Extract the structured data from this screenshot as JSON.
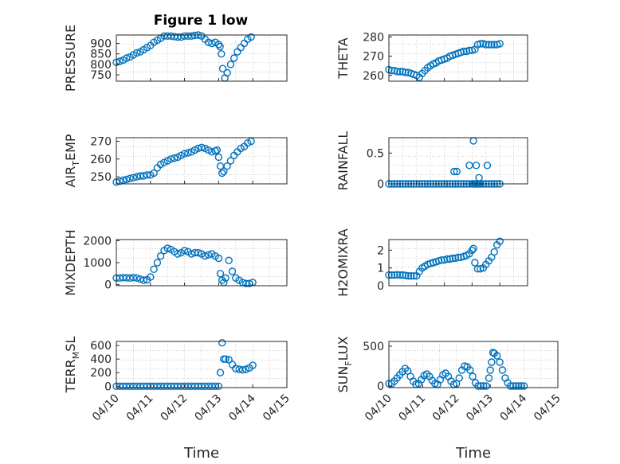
{
  "figure": {
    "title": "Figure 1 low",
    "marker_color": "#0072bd",
    "axis_color": "#262626",
    "grid_color": "#b0b0b0"
  },
  "chart_data": [
    {
      "type": "scatter",
      "position": "row-1-left",
      "title": "Figure 1 low",
      "ylabel_main": "PRESSURE",
      "ylabel_sub": "",
      "ylabel_rest": "",
      "xlabel": "",
      "ylim": [
        720,
        940
      ],
      "yticks": [
        750,
        800,
        850,
        900
      ],
      "xlim": [
        0,
        5
      ],
      "xticks": [],
      "grid": true,
      "x": [
        0.0,
        0.1,
        0.2,
        0.3,
        0.4,
        0.5,
        0.6,
        0.7,
        0.8,
        0.9,
        1.0,
        1.1,
        1.2,
        1.3,
        1.4,
        1.5,
        1.6,
        1.7,
        1.8,
        1.9,
        2.0,
        2.1,
        2.2,
        2.3,
        2.4,
        2.5,
        2.6,
        2.7,
        2.8,
        2.9,
        3.0,
        3.04,
        3.08,
        3.12,
        3.18,
        3.25,
        3.35,
        3.45,
        3.55,
        3.65,
        3.75,
        3.85,
        3.95
      ],
      "y": [
        810,
        815,
        820,
        830,
        835,
        845,
        855,
        860,
        870,
        880,
        890,
        905,
        915,
        925,
        935,
        935,
        935,
        932,
        930,
        930,
        935,
        935,
        935,
        938,
        940,
        935,
        920,
        905,
        900,
        905,
        895,
        885,
        850,
        780,
        735,
        760,
        800,
        830,
        860,
        880,
        900,
        920,
        930
      ]
    },
    {
      "type": "scatter",
      "position": "row-1-right",
      "title": "",
      "ylabel_main": "THETA",
      "ylabel_sub": "",
      "ylabel_rest": "",
      "xlabel": "",
      "ylim": [
        257,
        281
      ],
      "yticks": [
        260,
        270,
        280
      ],
      "xlim": [
        0,
        5
      ],
      "xticks": [],
      "grid": true,
      "x": [
        0.0,
        0.1,
        0.2,
        0.3,
        0.4,
        0.5,
        0.6,
        0.7,
        0.8,
        0.9,
        1.0,
        1.1,
        1.2,
        1.3,
        1.4,
        1.5,
        1.6,
        1.7,
        1.8,
        1.9,
        2.0,
        2.1,
        2.2,
        2.3,
        2.4,
        2.5,
        2.6,
        2.7,
        2.8,
        2.9,
        3.0,
        3.1,
        3.2,
        3.3,
        3.4,
        3.5,
        3.6,
        3.7,
        3.8,
        3.9,
        4.0
      ],
      "y": [
        263,
        262.5,
        262.5,
        262,
        262,
        262,
        261.5,
        261.5,
        261,
        260.5,
        260,
        259,
        261,
        262.5,
        264,
        265,
        266,
        266.5,
        267.5,
        268,
        268.5,
        269,
        270,
        270.5,
        271,
        271.5,
        272,
        272.5,
        272.5,
        273,
        273,
        273.5,
        276,
        276.5,
        276.5,
        276,
        276,
        276,
        276,
        276,
        276.5
      ]
    },
    {
      "type": "scatter",
      "position": "row-2-left",
      "title": "",
      "ylabel_main": "AIR",
      "ylabel_sub": "T",
      "ylabel_rest": "EMP",
      "xlabel": "",
      "ylim": [
        246,
        272
      ],
      "yticks": [
        250,
        260,
        270
      ],
      "xlim": [
        0,
        5
      ],
      "xticks": [],
      "grid": true,
      "x": [
        0.0,
        0.1,
        0.2,
        0.3,
        0.4,
        0.5,
        0.6,
        0.7,
        0.8,
        0.9,
        1.0,
        1.1,
        1.2,
        1.3,
        1.4,
        1.5,
        1.6,
        1.7,
        1.8,
        1.9,
        2.0,
        2.1,
        2.2,
        2.3,
        2.4,
        2.5,
        2.6,
        2.7,
        2.8,
        2.9,
        2.95,
        3.0,
        3.05,
        3.1,
        3.15,
        3.25,
        3.35,
        3.45,
        3.55,
        3.65,
        3.75,
        3.85,
        3.95
      ],
      "y": [
        247,
        247.5,
        248,
        248.5,
        249,
        249.5,
        250,
        250.5,
        250.5,
        251,
        251,
        252,
        255,
        257,
        258,
        259,
        260,
        260.5,
        261,
        262,
        263,
        263.5,
        264,
        265,
        266,
        266.5,
        266,
        265,
        264,
        264.5,
        265,
        261,
        256,
        252,
        253,
        256,
        259,
        262,
        264,
        266,
        267,
        269,
        270
      ]
    },
    {
      "type": "scatter",
      "position": "row-2-right",
      "title": "",
      "ylabel_main": "RAINFALL",
      "ylabel_sub": "",
      "ylabel_rest": "",
      "xlabel": "",
      "ylim": [
        0,
        0.75
      ],
      "yticks": [
        0,
        0.5
      ],
      "xlim": [
        0,
        5
      ],
      "xticks": [],
      "grid": true,
      "x": [
        0.0,
        0.1,
        0.2,
        0.3,
        0.4,
        0.5,
        0.6,
        0.7,
        0.8,
        0.9,
        1.0,
        1.1,
        1.2,
        1.3,
        1.4,
        1.5,
        1.6,
        1.7,
        1.8,
        1.9,
        2.0,
        2.1,
        2.2,
        2.3,
        2.4,
        2.5,
        2.6,
        2.7,
        2.8,
        2.9,
        3.0,
        3.05,
        3.1,
        3.15,
        3.2,
        3.25,
        3.3,
        3.4,
        3.5,
        3.6,
        3.7,
        3.8,
        3.9,
        4.0,
        2.35,
        2.45,
        2.9,
        3.05,
        3.15,
        3.25,
        3.55
      ],
      "y": [
        0,
        0,
        0,
        0,
        0,
        0,
        0,
        0,
        0,
        0,
        0,
        0,
        0,
        0,
        0,
        0,
        0,
        0,
        0,
        0,
        0,
        0,
        0,
        0,
        0,
        0,
        0,
        0,
        0,
        0,
        0,
        0,
        0,
        0,
        0,
        0,
        0,
        0,
        0,
        0,
        0,
        0,
        0,
        0,
        0.2,
        0.2,
        0.3,
        0.7,
        0.3,
        0.1,
        0.3
      ]
    },
    {
      "type": "scatter",
      "position": "row-3-left",
      "title": "",
      "ylabel_main": "MIXDEPTH",
      "ylabel_sub": "",
      "ylabel_rest": "",
      "xlabel": "",
      "ylim": [
        -50,
        2050
      ],
      "yticks": [
        0,
        1000,
        2000
      ],
      "xlim": [
        0,
        5
      ],
      "xticks": [],
      "grid": true,
      "x": [
        0.0,
        0.1,
        0.2,
        0.3,
        0.4,
        0.5,
        0.6,
        0.7,
        0.8,
        0.9,
        1.0,
        1.1,
        1.2,
        1.3,
        1.4,
        1.5,
        1.6,
        1.7,
        1.8,
        1.9,
        2.0,
        2.1,
        2.2,
        2.3,
        2.4,
        2.5,
        2.6,
        2.7,
        2.8,
        2.9,
        3.0,
        3.05,
        3.1,
        3.15,
        3.2,
        3.3,
        3.4,
        3.5,
        3.6,
        3.7,
        3.8,
        3.9,
        4.0
      ],
      "y": [
        300,
        300,
        320,
        310,
        300,
        320,
        300,
        250,
        200,
        220,
        350,
        700,
        1000,
        1300,
        1550,
        1650,
        1600,
        1500,
        1400,
        1450,
        1550,
        1500,
        1400,
        1450,
        1450,
        1400,
        1300,
        1350,
        1400,
        1300,
        1200,
        500,
        200,
        100,
        300,
        1100,
        600,
        300,
        200,
        100,
        50,
        50,
        100
      ]
    },
    {
      "type": "scatter",
      "position": "row-3-right",
      "title": "",
      "ylabel_main": "H2OMIXRA",
      "ylabel_sub": "",
      "ylabel_rest": "",
      "xlabel": "",
      "ylim": [
        0,
        2.6
      ],
      "yticks": [
        0,
        1,
        2
      ],
      "xlim": [
        0,
        5
      ],
      "xticks": [],
      "grid": true,
      "x": [
        0.0,
        0.1,
        0.2,
        0.3,
        0.4,
        0.5,
        0.6,
        0.7,
        0.8,
        0.9,
        1.0,
        1.1,
        1.2,
        1.3,
        1.4,
        1.5,
        1.6,
        1.7,
        1.8,
        1.9,
        2.0,
        2.1,
        2.2,
        2.3,
        2.4,
        2.5,
        2.6,
        2.7,
        2.8,
        2.9,
        3.0,
        3.05,
        3.1,
        3.2,
        3.3,
        3.4,
        3.5,
        3.6,
        3.7,
        3.8,
        3.9,
        4.0
      ],
      "y": [
        0.6,
        0.6,
        0.6,
        0.62,
        0.6,
        0.6,
        0.58,
        0.55,
        0.55,
        0.55,
        0.55,
        0.8,
        1.0,
        1.1,
        1.2,
        1.25,
        1.3,
        1.35,
        1.4,
        1.45,
        1.45,
        1.5,
        1.5,
        1.55,
        1.55,
        1.6,
        1.6,
        1.65,
        1.7,
        1.8,
        2.0,
        2.1,
        1.3,
        0.95,
        0.95,
        1.0,
        1.2,
        1.4,
        1.6,
        1.9,
        2.3,
        2.5
      ]
    },
    {
      "type": "scatter",
      "position": "row-4-left",
      "title": "",
      "ylabel_main": "TERR",
      "ylabel_sub": "M",
      "ylabel_rest": "SL",
      "xlabel": "Time",
      "ylim": [
        -20,
        660
      ],
      "yticks": [
        0,
        200,
        400,
        600
      ],
      "xlim": [
        0,
        5
      ],
      "xticks": [
        "04/10",
        "04/11",
        "04/12",
        "04/13",
        "04/14",
        "04/15"
      ],
      "grid": true,
      "x": [
        0.0,
        0.1,
        0.2,
        0.3,
        0.4,
        0.5,
        0.6,
        0.7,
        0.8,
        0.9,
        1.0,
        1.1,
        1.2,
        1.3,
        1.4,
        1.5,
        1.6,
        1.7,
        1.8,
        1.9,
        2.0,
        2.1,
        2.2,
        2.3,
        2.4,
        2.5,
        2.6,
        2.7,
        2.8,
        2.9,
        3.0,
        3.05,
        3.1,
        3.15,
        3.2,
        3.3,
        3.4,
        3.5,
        3.6,
        3.7,
        3.8,
        3.9,
        4.0
      ],
      "y": [
        0,
        0,
        0,
        0,
        0,
        0,
        0,
        0,
        0,
        0,
        0,
        0,
        0,
        0,
        0,
        0,
        0,
        0,
        0,
        0,
        0,
        0,
        0,
        0,
        0,
        0,
        0,
        0,
        0,
        0,
        0,
        200,
        640,
        400,
        400,
        390,
        320,
        260,
        250,
        240,
        250,
        270,
        310
      ]
    },
    {
      "type": "scatter",
      "position": "row-4-right",
      "title": "",
      "ylabel_main": "SUN",
      "ylabel_sub": "F",
      "ylabel_rest": "LUX",
      "xlabel": "Time",
      "ylim": [
        -20,
        560
      ],
      "yticks": [
        0,
        500
      ],
      "xlim": [
        0,
        5
      ],
      "xticks": [
        "04/10",
        "04/11",
        "04/12",
        "04/13",
        "04/14",
        "04/15"
      ],
      "grid": true,
      "x": [
        0.0,
        0.08,
        0.16,
        0.24,
        0.32,
        0.4,
        0.48,
        0.56,
        0.64,
        0.72,
        0.8,
        0.88,
        0.96,
        1.04,
        1.12,
        1.2,
        1.28,
        1.36,
        1.44,
        1.52,
        1.6,
        1.68,
        1.76,
        1.84,
        1.92,
        2.0,
        2.08,
        2.16,
        2.24,
        2.32,
        2.4,
        2.48,
        2.56,
        2.64,
        2.72,
        2.8,
        2.88,
        2.96,
        3.0,
        3.04,
        3.08,
        3.12,
        3.2,
        3.28,
        3.36,
        3.44,
        3.52,
        3.6,
        3.68,
        3.76,
        3.84,
        3.92,
        4.0
      ],
      "y": [
        30,
        30,
        60,
        100,
        140,
        180,
        220,
        190,
        120,
        60,
        20,
        30,
        80,
        130,
        150,
        120,
        70,
        30,
        20,
        80,
        140,
        160,
        120,
        60,
        20,
        30,
        100,
        200,
        250,
        240,
        200,
        120,
        40,
        0,
        0,
        0,
        0,
        100,
        200,
        300,
        420,
        410,
        380,
        300,
        200,
        100,
        40,
        0,
        0,
        0,
        0,
        0,
        0
      ]
    }
  ]
}
